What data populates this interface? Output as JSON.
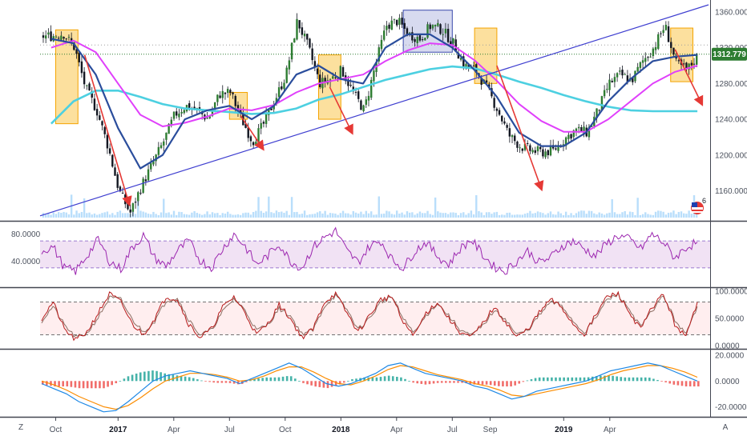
{
  "chart_data": [
    {
      "type": "candlestick",
      "title": "",
      "x_ticks": [
        "Oct",
        "2017",
        "Apr",
        "Jul",
        "Oct",
        "2018",
        "Apr",
        "Jul",
        "Sep",
        "2019",
        "Apr"
      ],
      "x_ticks_bold": [
        "2017",
        "2018",
        "2019"
      ],
      "y_ticks": [
        "1360.000",
        "1320.000",
        "1280.000",
        "1240.000",
        "1200.000",
        "1160.000"
      ],
      "ylim": [
        1130,
        1368
      ],
      "last_price": "1312.779",
      "current_price_line": 1312.779,
      "close_path": [
        [
          2016.7,
          1333
        ],
        [
          2016.75,
          1336
        ],
        [
          2016.8,
          1320
        ],
        [
          2016.85,
          1275
        ],
        [
          2016.9,
          1250
        ],
        [
          2016.95,
          1210
        ],
        [
          2017.0,
          1160
        ],
        [
          2017.05,
          1135
        ],
        [
          2017.1,
          1165
        ],
        [
          2017.15,
          1190
        ],
        [
          2017.2,
          1215
        ],
        [
          2017.25,
          1245
        ],
        [
          2017.3,
          1255
        ],
        [
          2017.35,
          1250
        ],
        [
          2017.4,
          1240
        ],
        [
          2017.45,
          1268
        ],
        [
          2017.5,
          1270
        ],
        [
          2017.55,
          1240
        ],
        [
          2017.6,
          1215
        ],
        [
          2017.65,
          1235
        ],
        [
          2017.7,
          1262
        ],
        [
          2017.75,
          1290
        ],
        [
          2017.8,
          1350
        ],
        [
          2017.85,
          1320
        ],
        [
          2017.9,
          1280
        ],
        [
          2017.95,
          1285
        ],
        [
          2018.0,
          1295
        ],
        [
          2018.05,
          1270
        ],
        [
          2018.1,
          1250
        ],
        [
          2018.15,
          1300
        ],
        [
          2018.2,
          1345
        ],
        [
          2018.25,
          1350
        ],
        [
          2018.3,
          1335
        ],
        [
          2018.35,
          1330
        ],
        [
          2018.4,
          1345
        ],
        [
          2018.45,
          1340
        ],
        [
          2018.5,
          1325
        ],
        [
          2018.55,
          1300
        ],
        [
          2018.6,
          1295
        ],
        [
          2018.65,
          1275
        ],
        [
          2018.7,
          1250
        ],
        [
          2018.75,
          1222
        ],
        [
          2018.8,
          1210
        ],
        [
          2018.85,
          1205
        ],
        [
          2018.9,
          1203
        ],
        [
          2018.95,
          1205
        ],
        [
          2019.0,
          1218
        ],
        [
          2019.05,
          1228
        ],
        [
          2019.1,
          1225
        ],
        [
          2019.15,
          1250
        ],
        [
          2019.2,
          1280
        ],
        [
          2019.25,
          1290
        ],
        [
          2019.3,
          1283
        ],
        [
          2019.35,
          1305
        ],
        [
          2019.4,
          1320
        ],
        [
          2019.45,
          1345
        ],
        [
          2019.5,
          1302
        ],
        [
          2019.55,
          1295
        ],
        [
          2019.6,
          1312.779
        ]
      ],
      "ma_fast_path": [
        [
          2016.7,
          1330
        ],
        [
          2016.8,
          1325
        ],
        [
          2016.9,
          1290
        ],
        [
          2017.0,
          1230
        ],
        [
          2017.1,
          1185
        ],
        [
          2017.2,
          1200
        ],
        [
          2017.3,
          1240
        ],
        [
          2017.4,
          1250
        ],
        [
          2017.5,
          1255
        ],
        [
          2017.6,
          1240
        ],
        [
          2017.7,
          1255
        ],
        [
          2017.8,
          1290
        ],
        [
          2017.9,
          1300
        ],
        [
          2018.0,
          1285
        ],
        [
          2018.1,
          1280
        ],
        [
          2018.2,
          1320
        ],
        [
          2018.3,
          1335
        ],
        [
          2018.4,
          1335
        ],
        [
          2018.5,
          1320
        ],
        [
          2018.6,
          1295
        ],
        [
          2018.7,
          1265
        ],
        [
          2018.8,
          1225
        ],
        [
          2018.9,
          1210
        ],
        [
          2019.0,
          1210
        ],
        [
          2019.1,
          1225
        ],
        [
          2019.2,
          1260
        ],
        [
          2019.3,
          1285
        ],
        [
          2019.4,
          1305
        ],
        [
          2019.5,
          1310
        ],
        [
          2019.6,
          1312
        ]
      ],
      "ma_mid_path": [
        [
          2016.7,
          1320
        ],
        [
          2016.8,
          1328
        ],
        [
          2016.9,
          1315
        ],
        [
          2017.0,
          1280
        ],
        [
          2017.1,
          1245
        ],
        [
          2017.2,
          1232
        ],
        [
          2017.3,
          1236
        ],
        [
          2017.4,
          1243
        ],
        [
          2017.5,
          1252
        ],
        [
          2017.6,
          1250
        ],
        [
          2017.7,
          1256
        ],
        [
          2017.8,
          1270
        ],
        [
          2017.9,
          1280
        ],
        [
          2018.0,
          1285
        ],
        [
          2018.1,
          1290
        ],
        [
          2018.2,
          1305
        ],
        [
          2018.3,
          1317
        ],
        [
          2018.4,
          1325
        ],
        [
          2018.5,
          1323
        ],
        [
          2018.6,
          1306
        ],
        [
          2018.7,
          1283
        ],
        [
          2018.8,
          1257
        ],
        [
          2018.9,
          1238
        ],
        [
          2019.0,
          1226
        ],
        [
          2019.1,
          1226
        ],
        [
          2019.2,
          1240
        ],
        [
          2019.3,
          1260
        ],
        [
          2019.4,
          1280
        ],
        [
          2019.5,
          1293
        ],
        [
          2019.6,
          1300
        ]
      ],
      "ma_slow_path": [
        [
          2016.7,
          1235
        ],
        [
          2016.8,
          1260
        ],
        [
          2016.9,
          1272
        ],
        [
          2017.0,
          1272
        ],
        [
          2017.1,
          1265
        ],
        [
          2017.2,
          1257
        ],
        [
          2017.3,
          1252
        ],
        [
          2017.4,
          1250
        ],
        [
          2017.5,
          1248
        ],
        [
          2017.6,
          1246
        ],
        [
          2017.7,
          1247
        ],
        [
          2017.8,
          1252
        ],
        [
          2017.9,
          1262
        ],
        [
          2018.0,
          1268
        ],
        [
          2018.1,
          1276
        ],
        [
          2018.2,
          1284
        ],
        [
          2018.3,
          1290
        ],
        [
          2018.4,
          1296
        ],
        [
          2018.5,
          1299
        ],
        [
          2018.6,
          1297
        ],
        [
          2018.7,
          1290
        ],
        [
          2018.8,
          1282
        ],
        [
          2018.9,
          1275
        ],
        [
          2019.0,
          1267
        ],
        [
          2019.1,
          1260
        ],
        [
          2019.2,
          1254
        ],
        [
          2019.3,
          1250
        ],
        [
          2019.4,
          1249
        ],
        [
          2019.5,
          1249
        ],
        [
          2019.6,
          1249
        ]
      ],
      "trendline": [
        [
          2016.65,
          1132
        ],
        [
          2019.65,
          1368
        ]
      ],
      "resistance_level": 1323,
      "arrows": [
        [
          [
            2016.85,
            1312
          ],
          [
            2017.05,
            1145
          ]
        ],
        [
          [
            2017.55,
            1244
          ],
          [
            2017.65,
            1207
          ]
        ],
        [
          [
            2017.95,
            1276
          ],
          [
            2018.05,
            1225
          ]
        ],
        [
          [
            2018.7,
            1300
          ],
          [
            2018.9,
            1162
          ]
        ],
        [
          [
            2019.5,
            1318
          ],
          [
            2019.62,
            1257
          ]
        ]
      ],
      "zones": [
        {
          "x": [
            2016.72,
            2016.82
          ],
          "y": [
            1235,
            1340
          ]
        },
        {
          "x": [
            2017.5,
            2017.58
          ],
          "y": [
            1240,
            1270
          ]
        },
        {
          "x": [
            2017.9,
            2018.0
          ],
          "y": [
            1240,
            1312
          ]
        },
        {
          "x": [
            2018.6,
            2018.7
          ],
          "y": [
            1280,
            1342
          ]
        },
        {
          "x": [
            2019.48,
            2019.58
          ],
          "y": [
            1282,
            1342
          ]
        }
      ],
      "range_box": {
        "x": [
          2018.28,
          2018.5
        ],
        "y": [
          1315,
          1362
        ]
      }
    },
    {
      "type": "line",
      "indicator": "oscillator-1",
      "y_ticks": [
        "80.0000",
        "40.0000"
      ],
      "ylim": [
        5,
        95
      ],
      "bands": [
        70,
        30
      ],
      "series": [
        {
          "values": [
            55,
            62,
            30,
            25,
            48,
            72,
            40,
            28,
            60,
            78,
            45,
            32,
            55,
            70,
            42,
            30,
            58,
            80,
            62,
            35,
            48,
            66,
            40,
            30,
            60,
            75,
            85,
            55,
            38,
            62,
            70,
            42,
            30,
            55,
            68,
            48,
            35,
            58,
            72,
            50,
            32,
            25,
            40,
            55,
            38,
            45,
            62,
            70,
            58,
            48,
            66,
            78,
            72,
            58,
            80,
            68,
            45,
            60,
            68
          ]
        }
      ]
    },
    {
      "type": "line",
      "indicator": "oscillator-2",
      "y_ticks": [
        "100.0000",
        "50.0000",
        "0.0000"
      ],
      "ylim": [
        0,
        100
      ],
      "bands": [
        80,
        20
      ],
      "series": [
        {
          "values": [
            50,
            80,
            30,
            10,
            25,
            60,
            95,
            80,
            40,
            20,
            50,
            90,
            85,
            40,
            15,
            30,
            70,
            90,
            60,
            20,
            40,
            75,
            50,
            15,
            30,
            80,
            95,
            60,
            25,
            55,
            85,
            90,
            40,
            20,
            60,
            80,
            50,
            25,
            15,
            40,
            70,
            45,
            15,
            30,
            60,
            85,
            70,
            40,
            20,
            55,
            90,
            95,
            60,
            30,
            70,
            95,
            40,
            15,
            80
          ]
        },
        {
          "values": [
            45,
            72,
            38,
            15,
            22,
            52,
            88,
            85,
            48,
            25,
            45,
            82,
            88,
            48,
            20,
            28,
            62,
            86,
            65,
            28,
            38,
            68,
            55,
            22,
            28,
            72,
            92,
            66,
            30,
            50,
            80,
            90,
            48,
            24,
            55,
            78,
            55,
            30,
            18,
            36,
            64,
            50,
            20,
            28,
            55,
            80,
            74,
            45,
            24,
            50,
            84,
            94,
            66,
            34,
            64,
            92,
            48,
            20,
            72
          ]
        }
      ]
    },
    {
      "type": "bar+line",
      "indicator": "histogram-oscillator",
      "y_ticks": [
        "20.0000",
        "0.0000",
        "-20.0000"
      ],
      "ylim": [
        -26,
        22
      ],
      "series": [
        {
          "values": [
            -2,
            -6,
            -10,
            -16,
            -20,
            -24,
            -23,
            -16,
            -8,
            0,
            4,
            6,
            8,
            6,
            4,
            2,
            -2,
            2,
            6,
            10,
            14,
            10,
            4,
            -2,
            -4,
            -2,
            2,
            6,
            12,
            14,
            10,
            6,
            4,
            2,
            0,
            -4,
            -6,
            -10,
            -14,
            -12,
            -8,
            -6,
            -4,
            -2,
            0,
            4,
            8,
            10,
            12,
            14,
            12,
            8,
            4,
            0
          ]
        },
        {
          "values": [
            0,
            -3,
            -7,
            -12,
            -16,
            -20,
            -22,
            -19,
            -13,
            -6,
            0,
            3,
            6,
            6,
            5,
            3,
            0,
            1,
            4,
            8,
            11,
            11,
            7,
            2,
            -2,
            -3,
            0,
            4,
            9,
            12,
            11,
            8,
            5,
            3,
            1,
            -2,
            -4,
            -7,
            -11,
            -12,
            -10,
            -8,
            -6,
            -4,
            -2,
            1,
            5,
            8,
            10,
            12,
            12,
            10,
            7,
            3
          ]
        }
      ]
    }
  ],
  "corner": {
    "left_button": "Z",
    "right_button": "A"
  },
  "badge": {
    "number": "6"
  },
  "colors": {
    "up": "#26a69a",
    "down": "#ef5350",
    "candle_body": "#131722",
    "ma_fast": "#2a4d9c",
    "ma_mid": "#e040fb",
    "ma_slow": "#4dd0e1",
    "trend": "#3f3fd0",
    "arrow": "#e53935",
    "zone": "#f9c74f",
    "osc1": "#9c27b0",
    "osc2_a": "#b71c1c",
    "osc2_b": "#8d6e63",
    "hist_up": "#26a69a",
    "hist_down": "#ef5350",
    "line_a": "#1e88e5",
    "line_b": "#fb8c00",
    "price_tag": "#2e7d32",
    "level_line": "#2e7d32"
  }
}
